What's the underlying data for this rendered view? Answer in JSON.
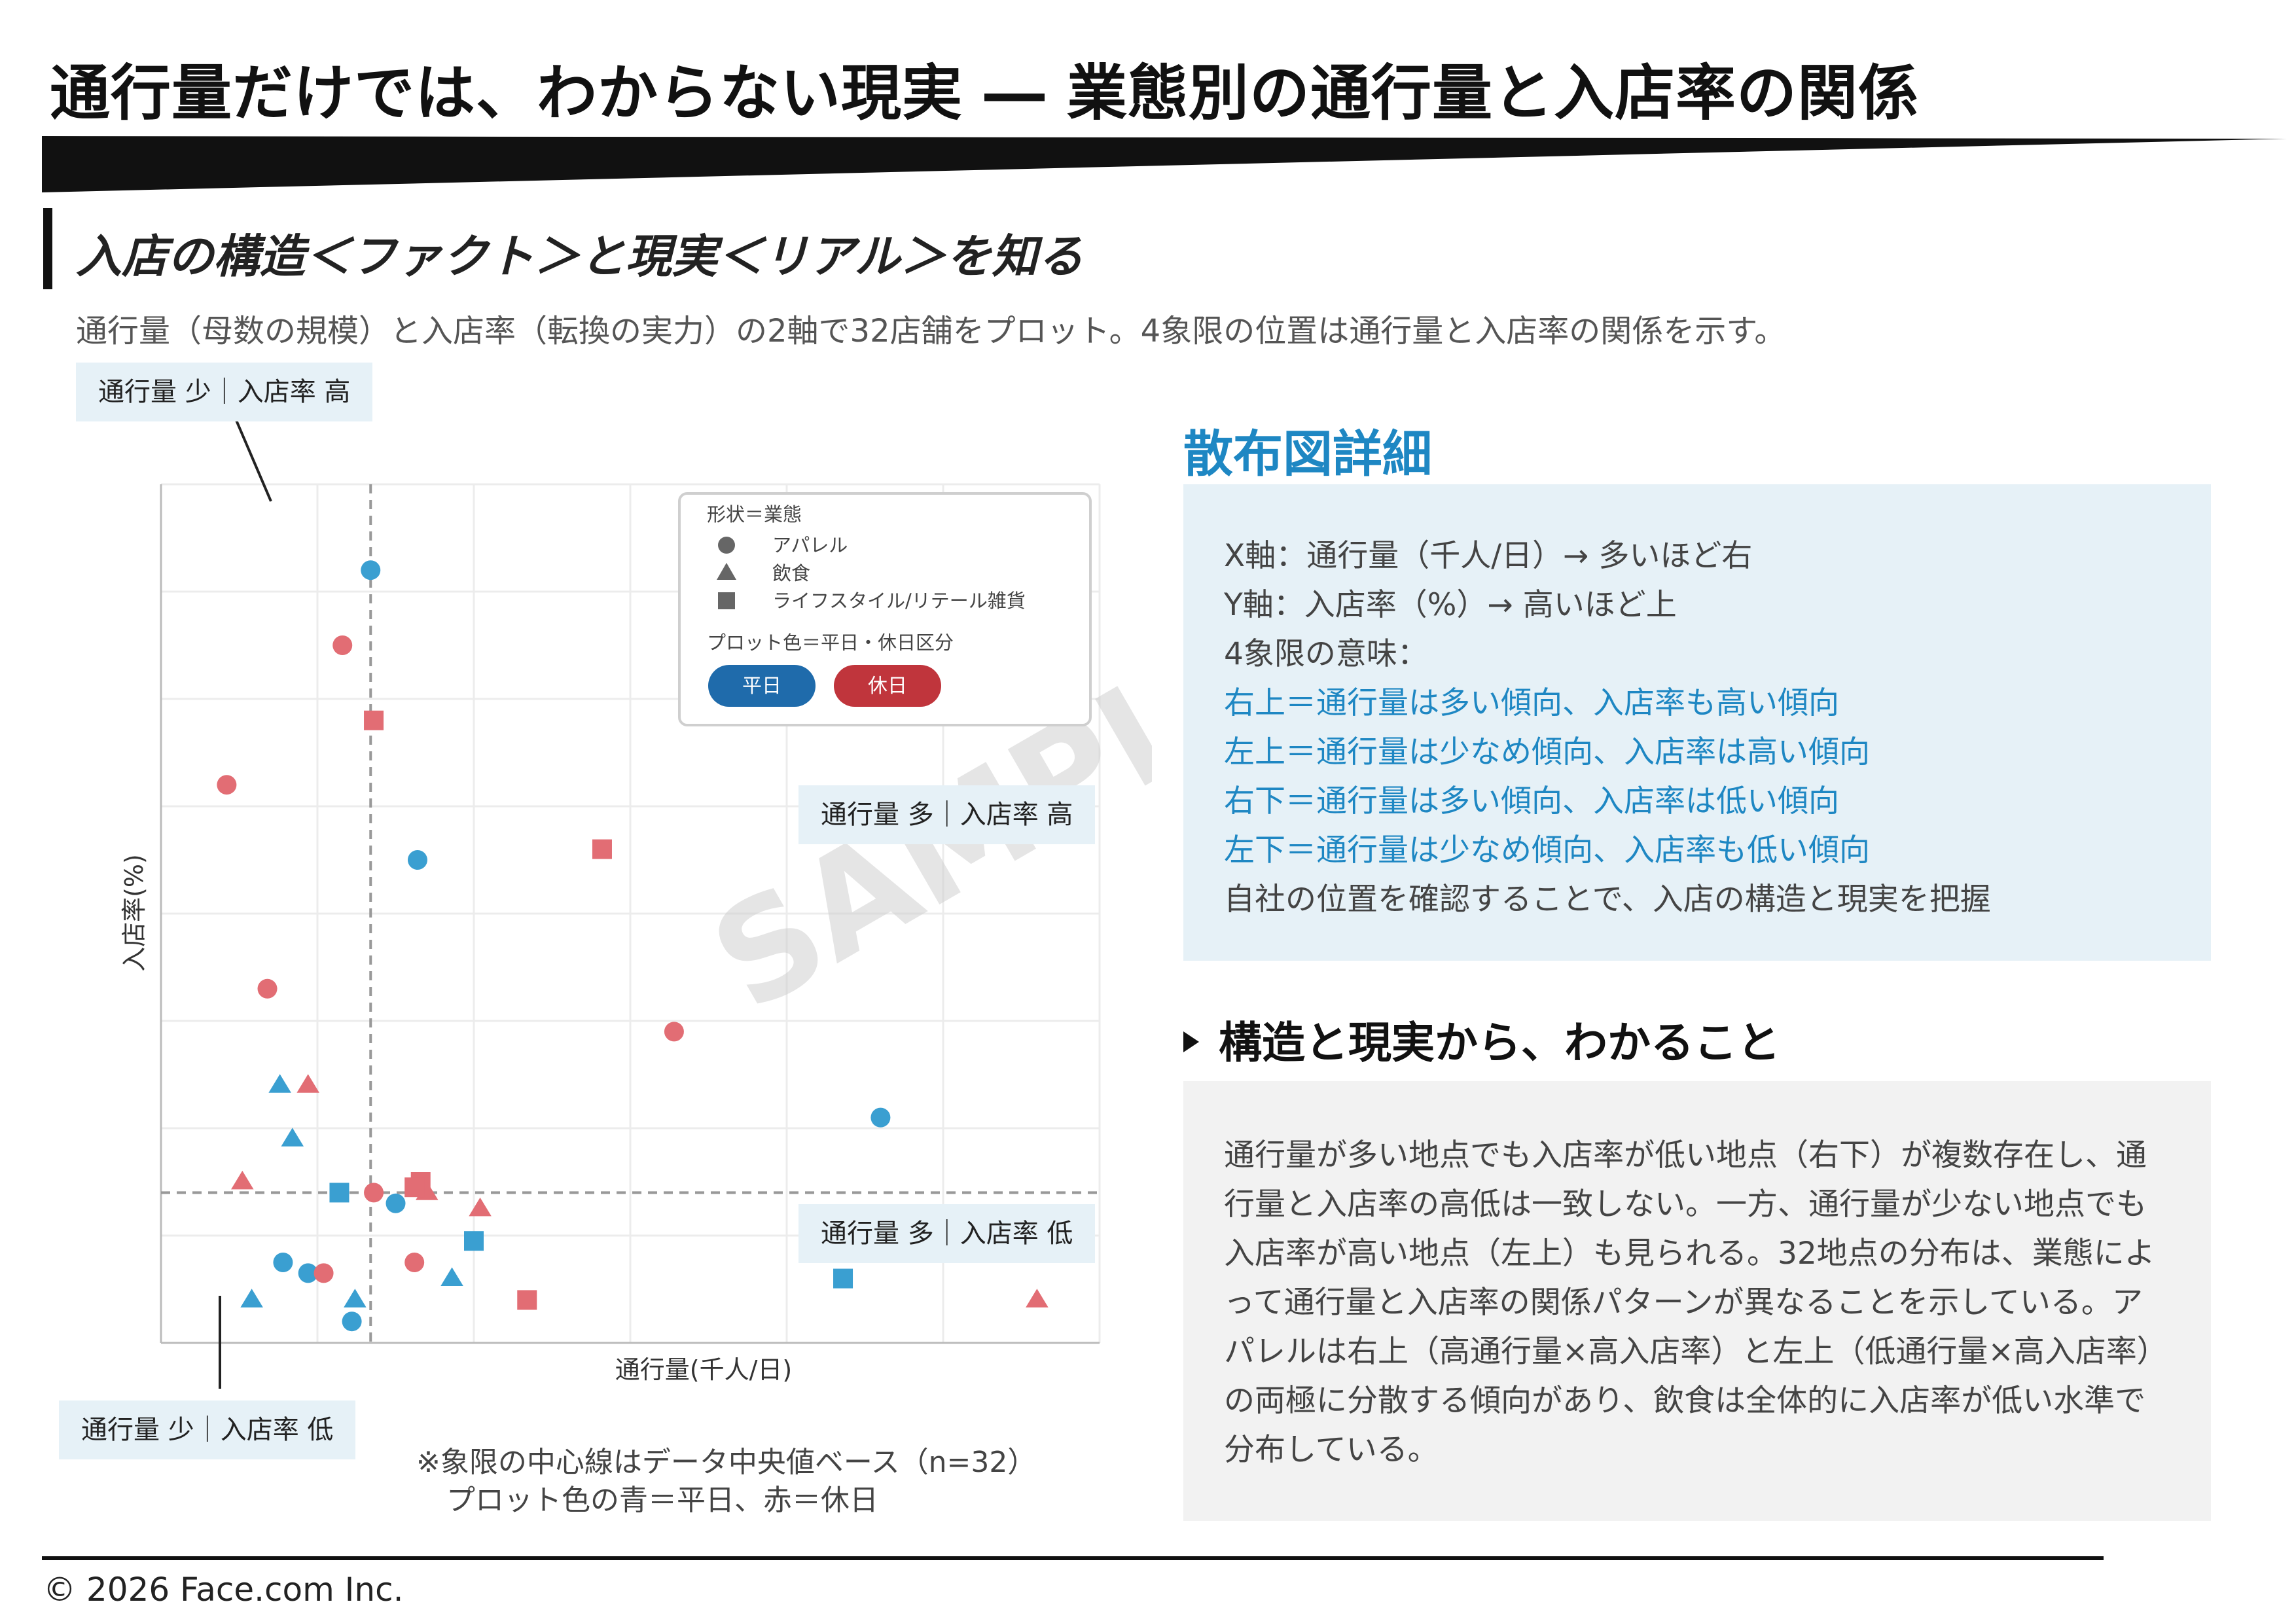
{
  "title": "通行量だけでは、わからない現実 ― 業態別の通行量と入店率の関係",
  "section_title": "入店の構造＜ファクト＞と現実＜リアル＞を知る",
  "subtitle": "通行量（母数の規模）と入店率（転換の実力）の2軸で32店舗をプロット。4象限の位置は通行量と入店率の関係を示す。",
  "quadrant_labels": {
    "top_left": "通行量 少｜入店率 高",
    "top_right": "通行量 多｜入店率 高",
    "bottom_right": "通行量 多｜入店率 低",
    "bottom_left": "通行量 少｜入店率 低"
  },
  "watermark": "SAMPLE",
  "chart_note": [
    "※象限の中心線はデータ中央値ベース（n=32）",
    "プロット色の青＝平日、赤＝休日"
  ],
  "colors": {
    "weekday": "#3a9fd1",
    "holiday": "#e26d74",
    "weekday_badge": "#1f6bab",
    "holiday_badge": "#c0353c",
    "accent": "#1e87c3"
  },
  "chart_data": {
    "type": "scatter",
    "xlabel": "通行量(千人/日)",
    "ylabel": "入店率(%)",
    "xlim": [
      0,
      30
    ],
    "ylim": [
      0,
      8
    ],
    "grid": true,
    "tick_labels_shown": false,
    "median_x": 6.7,
    "median_y": 1.4,
    "legend": {
      "position": "top-right",
      "shape_title": "形状＝業態",
      "shape_items": [
        {
          "shape": "circle",
          "label": "アパレル"
        },
        {
          "shape": "triangle",
          "label": "飲食"
        },
        {
          "shape": "square",
          "label": "ライフスタイル/リテール雑貨"
        }
      ],
      "color_title": "プロット色＝平日・休日区分",
      "color_items": [
        {
          "key": "weekday",
          "label": "平日"
        },
        {
          "key": "holiday",
          "label": "休日"
        }
      ]
    },
    "series": [
      {
        "name": "アパレル",
        "shape": "circle",
        "points": [
          {
            "x": 6.7,
            "y": 7.2,
            "day": "weekday"
          },
          {
            "x": 5.8,
            "y": 6.5,
            "day": "holiday"
          },
          {
            "x": 2.1,
            "y": 5.2,
            "day": "holiday"
          },
          {
            "x": 8.2,
            "y": 4.5,
            "day": "weekday"
          },
          {
            "x": 3.4,
            "y": 3.3,
            "day": "holiday"
          },
          {
            "x": 16.4,
            "y": 2.9,
            "day": "holiday"
          },
          {
            "x": 23.0,
            "y": 2.1,
            "day": "weekday"
          },
          {
            "x": 6.8,
            "y": 1.4,
            "day": "holiday"
          },
          {
            "x": 7.5,
            "y": 1.3,
            "day": "weekday"
          },
          {
            "x": 3.9,
            "y": 0.75,
            "day": "weekday"
          },
          {
            "x": 4.7,
            "y": 0.65,
            "day": "weekday"
          },
          {
            "x": 5.2,
            "y": 0.65,
            "day": "holiday"
          },
          {
            "x": 8.1,
            "y": 0.75,
            "day": "holiday"
          },
          {
            "x": 6.1,
            "y": 0.2,
            "day": "weekday"
          }
        ]
      },
      {
        "name": "飲食",
        "shape": "triangle",
        "points": [
          {
            "x": 3.8,
            "y": 2.4,
            "day": "weekday"
          },
          {
            "x": 4.7,
            "y": 2.4,
            "day": "holiday"
          },
          {
            "x": 4.2,
            "y": 1.9,
            "day": "weekday"
          },
          {
            "x": 2.6,
            "y": 1.5,
            "day": "holiday"
          },
          {
            "x": 8.5,
            "y": 1.4,
            "day": "holiday"
          },
          {
            "x": 10.2,
            "y": 1.25,
            "day": "holiday"
          },
          {
            "x": 9.3,
            "y": 0.6,
            "day": "weekday"
          },
          {
            "x": 2.9,
            "y": 0.4,
            "day": "weekday"
          },
          {
            "x": 6.2,
            "y": 0.4,
            "day": "weekday"
          },
          {
            "x": 28.0,
            "y": 0.4,
            "day": "holiday"
          }
        ]
      },
      {
        "name": "ライフスタイル/リテール雑貨",
        "shape": "square",
        "points": [
          {
            "x": 6.8,
            "y": 5.8,
            "day": "holiday"
          },
          {
            "x": 14.1,
            "y": 4.6,
            "day": "holiday"
          },
          {
            "x": 5.7,
            "y": 1.4,
            "day": "weekday"
          },
          {
            "x": 8.3,
            "y": 1.5,
            "day": "holiday"
          },
          {
            "x": 10.0,
            "y": 0.95,
            "day": "weekday"
          },
          {
            "x": 11.7,
            "y": 0.4,
            "day": "holiday"
          },
          {
            "x": 21.8,
            "y": 0.6,
            "day": "weekday"
          },
          {
            "x": 8.1,
            "y": 1.45,
            "day": "holiday"
          }
        ]
      }
    ]
  },
  "detail": {
    "title": "散布図詳細",
    "lines": [
      {
        "text": "X軸：通行量（千人/日）→ 多いほど右",
        "highlight": false
      },
      {
        "text": "Y軸：入店率（%）→ 高いほど上",
        "highlight": false
      },
      {
        "text": "4象限の意味：",
        "highlight": false
      },
      {
        "text": "右上＝通行量は多い傾向、入店率も高い傾向",
        "highlight": true
      },
      {
        "text": "左上＝通行量は少なめ傾向、入店率は高い傾向",
        "highlight": true
      },
      {
        "text": "右下＝通行量は多い傾向、入店率は低い傾向",
        "highlight": true
      },
      {
        "text": "左下＝通行量は少なめ傾向、入店率も低い傾向",
        "highlight": true
      },
      {
        "text": "自社の位置を確認することで、入店の構造と現実を把握",
        "highlight": false
      }
    ]
  },
  "findings": {
    "title": "構造と現実から、わかること",
    "text": "通行量が多い地点でも入店率が低い地点（右下）が複数存在し、通行量と入店率の高低は一致しない。一方、通行量が少ない地点でも入店率が高い地点（左上）も見られる。32地点の分布は、業態によって通行量と入店率の関係パターンが異なることを示している。アパレルは右上（高通行量×高入店率）と左上（低通行量×高入店率）の両極に分散する傾向があり、飲食は全体的に入店率が低い水準で分布している。"
  },
  "footer": "© 2026 Face.com Inc."
}
